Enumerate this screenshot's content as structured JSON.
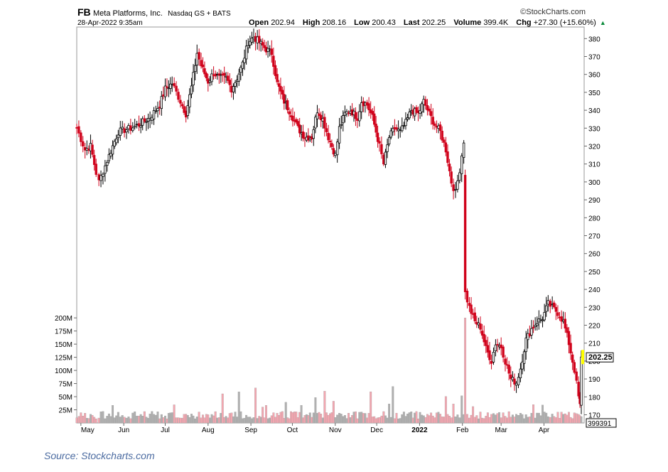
{
  "header": {
    "symbol": "FB",
    "name": "Meta Platforms, Inc.",
    "exchange": "Nasdaq GS + BATS",
    "brand": "©StockCharts.com",
    "timestamp": "28-Apr-2022 9:35am",
    "open_label": "Open",
    "open": "202.94",
    "high_label": "High",
    "high": "208.16",
    "low_label": "Low",
    "low": "200.43",
    "last_label": "Last",
    "last": "202.25",
    "volume_label": "Volume",
    "volume": "399.4K",
    "chg_label": "Chg",
    "chg": "+27.30 (+15.60%)",
    "up_arrow": "▲"
  },
  "source": "Source: Stockcharts.com",
  "colors": {
    "up": "#000000",
    "down": "#d0021b",
    "vol_up": "#b0b0b0",
    "vol_down": "#f4a6b0",
    "last_flag": "#ffff00"
  },
  "chart_data": {
    "type": "candlestick",
    "y_ticks": [
      "170",
      "180",
      "190",
      "200",
      "210",
      "220",
      "230",
      "240",
      "250",
      "260",
      "270",
      "280",
      "290",
      "300",
      "310",
      "320",
      "330",
      "340",
      "350",
      "360",
      "370",
      "380"
    ],
    "volume_ticks": [
      "25M",
      "50M",
      "75M",
      "100M",
      "125M",
      "150M",
      "175M",
      "200M"
    ],
    "x_labels": [
      "May",
      "Jun",
      "Jul",
      "Aug",
      "Sep",
      "Oct",
      "Nov",
      "Dec",
      "2022",
      "Feb",
      "Mar",
      "Apr"
    ],
    "ylim": [
      170,
      384
    ],
    "volume_max": 230,
    "last_price_label": "202.25",
    "last_volume_label": "399391",
    "close_series": [
      {
        "date": "2021-04-28",
        "close": 330
      },
      {
        "date": "2021-05-04",
        "close": 318
      },
      {
        "date": "2021-05-08",
        "close": 320
      },
      {
        "date": "2021-05-12",
        "close": 305
      },
      {
        "date": "2021-05-14",
        "close": 300
      },
      {
        "date": "2021-05-20",
        "close": 312
      },
      {
        "date": "2021-05-28",
        "close": 328
      },
      {
        "date": "2021-06-06",
        "close": 330
      },
      {
        "date": "2021-06-12",
        "close": 332
      },
      {
        "date": "2021-06-20",
        "close": 336
      },
      {
        "date": "2021-06-27",
        "close": 343
      },
      {
        "date": "2021-07-01",
        "close": 352
      },
      {
        "date": "2021-07-06",
        "close": 355
      },
      {
        "date": "2021-07-12",
        "close": 345
      },
      {
        "date": "2021-07-16",
        "close": 338
      },
      {
        "date": "2021-07-20",
        "close": 353
      },
      {
        "date": "2021-07-24",
        "close": 372
      },
      {
        "date": "2021-07-27",
        "close": 365
      },
      {
        "date": "2021-08-01",
        "close": 356
      },
      {
        "date": "2021-08-05",
        "close": 361
      },
      {
        "date": "2021-08-09",
        "close": 358
      },
      {
        "date": "2021-08-14",
        "close": 358
      },
      {
        "date": "2021-08-18",
        "close": 352
      },
      {
        "date": "2021-08-22",
        "close": 358
      },
      {
        "date": "2021-08-26",
        "close": 366
      },
      {
        "date": "2021-08-30",
        "close": 378
      },
      {
        "date": "2021-09-03",
        "close": 381
      },
      {
        "date": "2021-09-07",
        "close": 378
      },
      {
        "date": "2021-09-12",
        "close": 374
      },
      {
        "date": "2021-09-16",
        "close": 372
      },
      {
        "date": "2021-09-20",
        "close": 355
      },
      {
        "date": "2021-09-25",
        "close": 345
      },
      {
        "date": "2021-09-30",
        "close": 338
      },
      {
        "date": "2021-10-05",
        "close": 330
      },
      {
        "date": "2021-10-10",
        "close": 325
      },
      {
        "date": "2021-10-15",
        "close": 325
      },
      {
        "date": "2021-10-19",
        "close": 340
      },
      {
        "date": "2021-10-23",
        "close": 335
      },
      {
        "date": "2021-10-27",
        "close": 325
      },
      {
        "date": "2021-11-01",
        "close": 315
      },
      {
        "date": "2021-11-04",
        "close": 330
      },
      {
        "date": "2021-11-08",
        "close": 338
      },
      {
        "date": "2021-11-12",
        "close": 340
      },
      {
        "date": "2021-11-17",
        "close": 336
      },
      {
        "date": "2021-11-20",
        "close": 345
      },
      {
        "date": "2021-11-24",
        "close": 343
      },
      {
        "date": "2021-11-28",
        "close": 336
      },
      {
        "date": "2021-12-03",
        "close": 320
      },
      {
        "date": "2021-12-06",
        "close": 310
      },
      {
        "date": "2021-12-10",
        "close": 325
      },
      {
        "date": "2021-12-14",
        "close": 330
      },
      {
        "date": "2021-12-18",
        "close": 328
      },
      {
        "date": "2021-12-22",
        "close": 333
      },
      {
        "date": "2021-12-26",
        "close": 340
      },
      {
        "date": "2021-12-31",
        "close": 338
      },
      {
        "date": "2022-01-04",
        "close": 345
      },
      {
        "date": "2022-01-08",
        "close": 338
      },
      {
        "date": "2022-01-12",
        "close": 332
      },
      {
        "date": "2022-01-16",
        "close": 328
      },
      {
        "date": "2022-01-20",
        "close": 318
      },
      {
        "date": "2022-01-24",
        "close": 300
      },
      {
        "date": "2022-01-27",
        "close": 294
      },
      {
        "date": "2022-01-30",
        "close": 307
      },
      {
        "date": "2022-02-02",
        "close": 323
      },
      {
        "date": "2022-02-03",
        "close": 238
      },
      {
        "date": "2022-02-06",
        "close": 230
      },
      {
        "date": "2022-02-10",
        "close": 222
      },
      {
        "date": "2022-02-14",
        "close": 219
      },
      {
        "date": "2022-02-18",
        "close": 207
      },
      {
        "date": "2022-02-22",
        "close": 200
      },
      {
        "date": "2022-02-25",
        "close": 210
      },
      {
        "date": "2022-03-01",
        "close": 208
      },
      {
        "date": "2022-03-04",
        "close": 200
      },
      {
        "date": "2022-03-08",
        "close": 190
      },
      {
        "date": "2022-03-12",
        "close": 188
      },
      {
        "date": "2022-03-15",
        "close": 196
      },
      {
        "date": "2022-03-19",
        "close": 212
      },
      {
        "date": "2022-03-23",
        "close": 218
      },
      {
        "date": "2022-03-27",
        "close": 222
      },
      {
        "date": "2022-03-31",
        "close": 224
      },
      {
        "date": "2022-04-04",
        "close": 232
      },
      {
        "date": "2022-04-07",
        "close": 230
      },
      {
        "date": "2022-04-11",
        "close": 227
      },
      {
        "date": "2022-04-15",
        "close": 222
      },
      {
        "date": "2022-04-19",
        "close": 210
      },
      {
        "date": "2022-04-23",
        "close": 195
      },
      {
        "date": "2022-04-26",
        "close": 180
      },
      {
        "date": "2022-04-27",
        "close": 175
      },
      {
        "date": "2022-04-28",
        "close": 202.25
      }
    ]
  }
}
